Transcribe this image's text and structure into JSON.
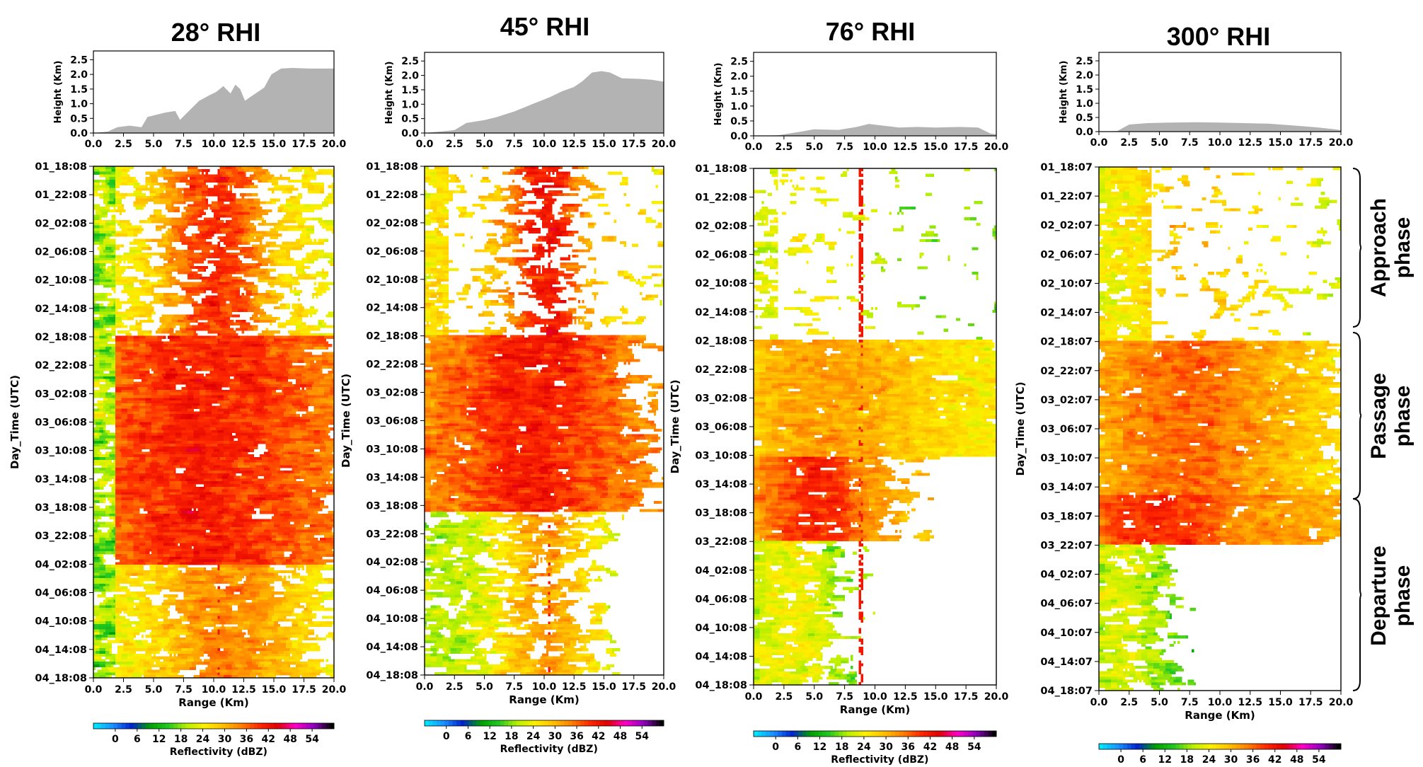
{
  "chart_data": {
    "type": "heatmap",
    "panels": [
      {
        "title": "28° RHI",
        "terrain": {
          "ylabel": "Height (Km)",
          "xlabel": "",
          "yticks": [
            "0.0",
            "0.5",
            "1.0",
            "1.5",
            "2.0",
            "2.5"
          ],
          "xticks": [
            "0.0",
            "2.5",
            "5.0",
            "7.5",
            "10.0",
            "12.5",
            "15.0",
            "17.5",
            "20.0"
          ],
          "xlim": [
            0,
            20
          ],
          "ylim": [
            0,
            2.8
          ],
          "profile": [
            [
              0,
              0
            ],
            [
              1.2,
              0.05
            ],
            [
              2,
              0.2
            ],
            [
              3,
              0.25
            ],
            [
              4,
              0.2
            ],
            [
              4.5,
              0.55
            ],
            [
              6,
              0.7
            ],
            [
              6.8,
              0.75
            ],
            [
              7.2,
              0.45
            ],
            [
              8.3,
              0.9
            ],
            [
              8.8,
              1.1
            ],
            [
              9.7,
              1.3
            ],
            [
              10.2,
              1.4
            ],
            [
              10.8,
              1.6
            ],
            [
              11.4,
              1.35
            ],
            [
              11.8,
              1.65
            ],
            [
              12.2,
              1.5
            ],
            [
              12.6,
              1.1
            ],
            [
              13.3,
              1.3
            ],
            [
              14.2,
              1.55
            ],
            [
              14.8,
              2.0
            ],
            [
              15.6,
              2.2
            ],
            [
              16.5,
              2.22
            ],
            [
              18,
              2.2
            ],
            [
              20,
              2.2
            ]
          ]
        },
        "heatmap": {
          "ylabel": "Day_Time (UTC)",
          "xlabel": "Range (Km)",
          "xticks": [
            "0.0",
            "2.5",
            "5.0",
            "7.5",
            "10.0",
            "12.5",
            "15.0",
            "17.5",
            "20.0"
          ],
          "yticks": [
            "01_18:08",
            "01_22:08",
            "02_02:08",
            "02_06:08",
            "02_10:08",
            "02_14:08",
            "02_18:08",
            "02_22:08",
            "03_02:08",
            "03_06:08",
            "03_10:08",
            "03_14:08",
            "03_18:08",
            "03_22:08",
            "04_02:08",
            "04_06:08",
            "04_10:08",
            "04_14:08",
            "04_18:08"
          ]
        },
        "colorbar": {
          "label": "Reflectivity (dBZ)",
          "ticks": [
            "0",
            "6",
            "12",
            "18",
            "24",
            "30",
            "36",
            "42",
            "48",
            "54"
          ],
          "range": [
            -6,
            60
          ]
        }
      },
      {
        "title": "45° RHI",
        "terrain": {
          "ylabel": "Height (Km)",
          "xlabel": "",
          "yticks": [
            "0.0",
            "0.5",
            "1.0",
            "1.5",
            "2.0",
            "2.5"
          ],
          "xticks": [
            "0.0",
            "2.5",
            "5.0",
            "7.5",
            "10.0",
            "12.5",
            "15.0",
            "17.5",
            "20.0"
          ],
          "xlim": [
            0,
            20
          ],
          "ylim": [
            0,
            2.8
          ],
          "profile": [
            [
              0,
              0
            ],
            [
              2.5,
              0.1
            ],
            [
              3.5,
              0.35
            ],
            [
              5,
              0.45
            ],
            [
              6,
              0.55
            ],
            [
              7.5,
              0.75
            ],
            [
              9,
              1.0
            ],
            [
              10.5,
              1.25
            ],
            [
              11.5,
              1.45
            ],
            [
              12.5,
              1.6
            ],
            [
              13.2,
              1.8
            ],
            [
              14,
              2.1
            ],
            [
              14.8,
              2.15
            ],
            [
              15.5,
              2.1
            ],
            [
              16.5,
              1.9
            ],
            [
              18,
              1.88
            ],
            [
              19,
              1.85
            ],
            [
              20,
              1.78
            ]
          ]
        },
        "heatmap": {
          "ylabel": "Day_Time (UTC)",
          "xlabel": "Range (Km)",
          "xticks": [
            "0.0",
            "2.5",
            "5.0",
            "7.5",
            "10.0",
            "12.5",
            "15.0",
            "17.5",
            "20.0"
          ],
          "yticks": [
            "01_18:08",
            "01_22:08",
            "02_02:08",
            "02_06:08",
            "02_10:08",
            "02_14:08",
            "02_18:08",
            "02_22:08",
            "03_02:08",
            "03_06:08",
            "03_10:08",
            "03_14:08",
            "03_18:08",
            "03_22:08",
            "04_02:08",
            "04_06:08",
            "04_10:08",
            "04_14:08",
            "04_18:08"
          ]
        },
        "colorbar": {
          "label": "Reflectivity (dBZ)",
          "ticks": [
            "0",
            "6",
            "12",
            "18",
            "24",
            "30",
            "36",
            "42",
            "48",
            "54"
          ],
          "range": [
            -6,
            60
          ]
        }
      },
      {
        "title": "76° RHI",
        "terrain": {
          "ylabel": "Height (Km)",
          "xlabel": "",
          "yticks": [
            "0.0",
            "0.5",
            "1.0",
            "1.5",
            "2.0",
            "2.5"
          ],
          "xticks": [
            "0.0",
            "2.5",
            "5.0",
            "7.5",
            "10.0",
            "12.5",
            "15.0",
            "17.5",
            "20.0"
          ],
          "xlim": [
            0,
            20
          ],
          "ylim": [
            0,
            2.8
          ],
          "profile": [
            [
              0,
              0
            ],
            [
              2,
              0.02
            ],
            [
              4,
              0.15
            ],
            [
              5,
              0.22
            ],
            [
              7,
              0.2
            ],
            [
              8.5,
              0.3
            ],
            [
              9.5,
              0.4
            ],
            [
              10.5,
              0.35
            ],
            [
              12,
              0.28
            ],
            [
              13.5,
              0.3
            ],
            [
              15,
              0.28
            ],
            [
              17,
              0.3
            ],
            [
              18.5,
              0.28
            ],
            [
              19.5,
              0.08
            ],
            [
              20,
              0.05
            ]
          ]
        },
        "heatmap": {
          "ylabel": "Day_Time (UTC)",
          "xlabel": "Range (Km)",
          "xticks": [
            "0.0",
            "2.5",
            "5.0",
            "7.5",
            "10.0",
            "12.5",
            "15.0",
            "17.5",
            "20.0"
          ],
          "yticks": [
            "01_18:08",
            "01_22:08",
            "02_02:08",
            "02_06:08",
            "02_10:08",
            "02_14:08",
            "02_18:08",
            "02_22:08",
            "03_02:08",
            "03_06:08",
            "03_10:08",
            "03_14:08",
            "03_18:08",
            "03_22:08",
            "04_02:08",
            "04_06:08",
            "04_10:08",
            "04_14:08",
            "04_18:08"
          ]
        },
        "colorbar": {
          "label": "Reflectivity (dBZ)",
          "ticks": [
            "0",
            "6",
            "12",
            "18",
            "24",
            "30",
            "36",
            "42",
            "48",
            "54"
          ],
          "range": [
            -6,
            60
          ]
        }
      },
      {
        "title": "300° RHI",
        "terrain": {
          "ylabel": "Height (Km)",
          "xlabel": "",
          "yticks": [
            "0.0",
            "0.5",
            "1.0",
            "1.5",
            "2.0",
            "2.5"
          ],
          "xticks": [
            "0.0",
            "2.5",
            "5.0",
            "7.5",
            "10.0",
            "12.5",
            "15.0",
            "17.5",
            "20.0"
          ],
          "xlim": [
            0,
            20
          ],
          "ylim": [
            0,
            2.8
          ],
          "profile": [
            [
              0,
              0
            ],
            [
              1.5,
              0.02
            ],
            [
              2.5,
              0.25
            ],
            [
              4,
              0.3
            ],
            [
              6,
              0.32
            ],
            [
              8,
              0.33
            ],
            [
              10,
              0.32
            ],
            [
              12,
              0.3
            ],
            [
              14,
              0.28
            ],
            [
              16,
              0.22
            ],
            [
              18,
              0.15
            ],
            [
              19.5,
              0.08
            ],
            [
              20,
              0.05
            ]
          ]
        },
        "heatmap": {
          "ylabel": "Day_Time (UTC)",
          "xlabel": "Range (Km)",
          "xticks": [
            "0.0",
            "2.5",
            "5.0",
            "7.5",
            "10.0",
            "12.5",
            "15.0",
            "17.5",
            "20.0"
          ],
          "yticks": [
            "01_18:07",
            "01_22:07",
            "02_02:07",
            "02_06:07",
            "02_10:07",
            "02_14:07",
            "02_18:07",
            "02_22:07",
            "03_02:07",
            "03_06:07",
            "03_10:07",
            "03_14:07",
            "03_18:07",
            "03_22:07",
            "04_02:07",
            "04_06:07",
            "04_10:07",
            "04_14:07",
            "04_18:07"
          ]
        },
        "colorbar": {
          "label": "Reflectivity (dBZ)",
          "ticks": [
            "0",
            "6",
            "12",
            "18",
            "24",
            "30",
            "36",
            "42",
            "48",
            "54"
          ],
          "range": [
            -6,
            60
          ]
        }
      }
    ],
    "phases": [
      {
        "label": "Approach phase",
        "from": "01_18:07",
        "to": "02_18:07"
      },
      {
        "label": "Passage phase",
        "from": "02_18:07",
        "to": "03_16:07"
      },
      {
        "label": "Departure phase",
        "from": "03_16:07",
        "to": "04_18:07"
      }
    ]
  },
  "colors": {
    "terrain_fill": "#b3b3b3",
    "colormap": [
      "#00e5ff",
      "#1a8cff",
      "#0022cc",
      "#00a000",
      "#22c822",
      "#b6f000",
      "#fff000",
      "#ffc000",
      "#ff8000",
      "#ff2a00",
      "#e00000",
      "#ff00c8",
      "#9000c0",
      "#000000"
    ]
  }
}
